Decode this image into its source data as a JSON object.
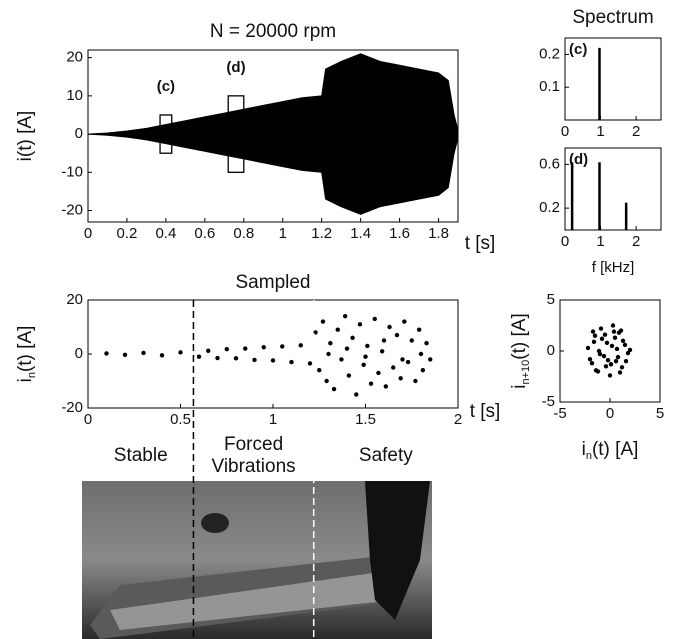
{
  "chart_data": [
    {
      "type": "envelope",
      "title": "N = 20000 rpm",
      "ylabel": [
        {
          "text": "i(t) [A]"
        }
      ],
      "xlabel": [
        {
          "text": "t [s]"
        }
      ],
      "annotations": [
        {
          "label": "(c)",
          "x": [
            0.37,
            0.43
          ],
          "y": [
            -5,
            5
          ]
        },
        {
          "label": "(d)",
          "x": [
            0.72,
            0.8
          ],
          "y": [
            -10,
            10
          ]
        }
      ],
      "x": [
        0,
        0.1,
        0.2,
        0.3,
        0.4,
        0.5,
        0.6,
        0.7,
        0.8,
        0.9,
        1.0,
        1.1,
        1.2,
        1.22,
        1.3,
        1.4,
        1.5,
        1.6,
        1.7,
        1.8,
        1.85,
        1.88,
        1.9
      ],
      "values": [
        0,
        0.3,
        0.8,
        1.5,
        2.5,
        3.5,
        4.5,
        5.5,
        6.5,
        7.5,
        8.5,
        9.5,
        10,
        17,
        19,
        21,
        19,
        18,
        17,
        16,
        14,
        5,
        1
      ],
      "color": "#000000",
      "xlim": [
        0,
        1.9
      ],
      "xticks": [
        0,
        0.2,
        0.4,
        0.6,
        0.8,
        1,
        1.2,
        1.4,
        1.6,
        1.8
      ],
      "ylim": [
        -23,
        22
      ],
      "yticks": [
        -20,
        -10,
        0,
        10,
        20
      ]
    },
    {
      "type": "stem",
      "title": "Spectrum",
      "label": "(c)",
      "x": [
        0.97
      ],
      "values": [
        0.22
      ],
      "color": "#000000",
      "xlim": [
        0,
        2.7
      ],
      "xticks": [
        0,
        1,
        2
      ],
      "ylim": [
        0,
        0.25
      ],
      "yticks": [
        0.1,
        0.2
      ]
    },
    {
      "type": "stem",
      "label": "(d)",
      "xlabel": [
        {
          "text": "f [kHz]"
        }
      ],
      "x": [
        0.2,
        0.97,
        1.72
      ],
      "values": [
        0.62,
        0.62,
        0.25
      ],
      "color": "#000000",
      "xlim": [
        0,
        2.7
      ],
      "xticks": [
        0,
        1,
        2
      ],
      "ylim": [
        0,
        0.75
      ],
      "yticks": [
        0.2,
        0.6
      ]
    },
    {
      "type": "scatter",
      "title": "Sampled",
      "ylabel": [
        {
          "text": "i"
        },
        {
          "text": "n",
          "sub": true
        },
        {
          "text": "(t) [A]"
        }
      ],
      "xlabel": [
        {
          "text": "t [s]"
        }
      ],
      "dividers": [
        0.57,
        1.22
      ],
      "regions": [
        [
          "Stable"
        ],
        [
          "Forced",
          "Vibrations"
        ],
        [
          "Safety"
        ]
      ],
      "x": [
        0.1,
        0.2,
        0.3,
        0.4,
        0.5,
        0.6,
        0.65,
        0.7,
        0.75,
        0.8,
        0.85,
        0.9,
        0.95,
        1.0,
        1.05,
        1.1,
        1.15,
        1.2,
        1.23,
        1.25,
        1.27,
        1.29,
        1.31,
        1.33,
        1.35,
        1.37,
        1.39,
        1.41,
        1.43,
        1.45,
        1.47,
        1.49,
        1.51,
        1.53,
        1.55,
        1.57,
        1.59,
        1.61,
        1.63,
        1.65,
        1.67,
        1.69,
        1.71,
        1.73,
        1.75,
        1.77,
        1.79,
        1.81,
        1.83,
        1.85,
        1.3,
        1.4,
        1.5,
        1.6,
        1.7,
        1.8
      ],
      "values": [
        0.2,
        -0.3,
        0.4,
        -0.5,
        0.6,
        -1,
        1.2,
        -1.5,
        1.8,
        -1.6,
        2,
        -2.2,
        2.5,
        -2.4,
        2.8,
        -3,
        3.2,
        -3.5,
        8,
        -6,
        12,
        -10,
        4,
        -13,
        9,
        -2,
        14,
        -8,
        6,
        -15,
        11,
        -4,
        3,
        -11,
        13,
        -7,
        1,
        -12,
        10,
        -5,
        7,
        -9,
        12,
        -3,
        5,
        -10,
        9,
        -6,
        4,
        -2,
        0,
        2,
        -1,
        5,
        -2,
        0
      ],
      "color": "#000000",
      "xlim": [
        0,
        2
      ],
      "xticks": [
        0,
        0.5,
        1,
        1.5,
        2
      ],
      "ylim": [
        -20,
        20
      ],
      "yticks": [
        -20,
        0,
        20
      ]
    },
    {
      "type": "scatter",
      "ylabel": [
        {
          "text": "i"
        },
        {
          "text": "n+10",
          "sub": true
        },
        {
          "text": "(t) [A]"
        }
      ],
      "xlabel": [
        {
          "text": "i"
        },
        {
          "text": "n",
          "sub": true
        },
        {
          "text": "(t) [A]"
        }
      ],
      "x": [
        -2.2,
        -1.8,
        -1.5,
        -1.2,
        -0.9,
        -0.6,
        -0.3,
        0,
        0.3,
        0.6,
        0.9,
        1.2,
        1.5,
        1.8,
        -2,
        -1.6,
        -1,
        -0.5,
        0.1,
        0.7,
        1.3,
        2.0,
        -1.4,
        -0.8,
        -0.2,
        0.4,
        1.0,
        1.6,
        -1.1,
        0.2,
        0.8,
        -0.4,
        0.5,
        -1.7,
        1.1
      ],
      "values": [
        0.3,
        -1.2,
        1.5,
        -2.0,
        2.2,
        -0.5,
        0.8,
        -2.4,
        2.5,
        -1.0,
        1.8,
        -1.6,
        0.6,
        -0.2,
        -0.8,
        0.9,
        -0.3,
        1.6,
        -1.3,
        0.2,
        1.0,
        0.1,
        -1.9,
        1.2,
        -0.9,
        1.9,
        -2.1,
        -1.0,
        0.0,
        0.5,
        -0.6,
        -1.5,
        1.3,
        1.9,
        2.0
      ],
      "color": "#000000",
      "xlim": [
        -5,
        5
      ],
      "xticks": [
        -5,
        0,
        5
      ],
      "ylim": [
        -5,
        5
      ],
      "yticks": [
        -5,
        0,
        5
      ]
    }
  ]
}
